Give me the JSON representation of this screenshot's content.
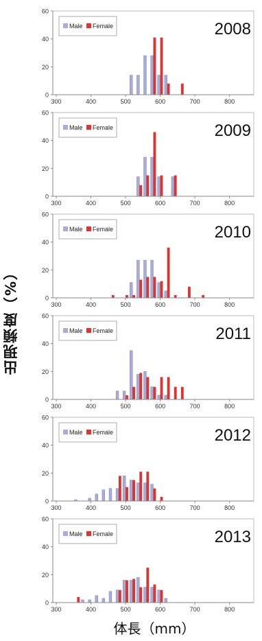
{
  "figure": {
    "ylabel": "出現頻度（%）",
    "xlabel": "体長（mm）"
  },
  "colors": {
    "male": "#a8acd8",
    "male_edge": "#7d82b8",
    "female": "#e0332f",
    "axis": "#888888",
    "frame": "#bdbdbd"
  },
  "chart_data": [
    {
      "type": "bar",
      "title": "2008",
      "xlim": [
        290,
        870
      ],
      "ylim": [
        0,
        60
      ],
      "xticks": [
        300,
        400,
        500,
        600,
        700,
        800
      ],
      "yticks": [
        0,
        20,
        40,
        60
      ],
      "bin_width": 20,
      "legend": "top-left",
      "series": [
        {
          "name": "Male",
          "x": [
            520,
            540,
            560,
            580,
            600,
            620
          ],
          "values": [
            14,
            14,
            28,
            28,
            14,
            14
          ]
        },
        {
          "name": "Female",
          "x": [
            580,
            600,
            620,
            660
          ],
          "values": [
            41,
            41,
            8,
            8
          ]
        }
      ]
    },
    {
      "type": "bar",
      "title": "2009",
      "xlim": [
        290,
        870
      ],
      "ylim": [
        0,
        60
      ],
      "xticks": [
        300,
        400,
        500,
        600,
        700,
        800
      ],
      "yticks": [
        0,
        20,
        40,
        60
      ],
      "bin_width": 20,
      "legend": "top-left",
      "series": [
        {
          "name": "Male",
          "x": [
            540,
            560,
            580,
            600,
            640
          ],
          "values": [
            14,
            28,
            28,
            14,
            14
          ]
        },
        {
          "name": "Female",
          "x": [
            540,
            560,
            580,
            600,
            640
          ],
          "values": [
            8,
            15,
            46,
            15,
            15
          ]
        }
      ]
    },
    {
      "type": "bar",
      "title": "2010",
      "xlim": [
        290,
        870
      ],
      "ylim": [
        0,
        60
      ],
      "xticks": [
        300,
        400,
        500,
        600,
        700,
        800
      ],
      "yticks": [
        0,
        20,
        40,
        60
      ],
      "bin_width": 20,
      "legend": "top-left",
      "series": [
        {
          "name": "Male",
          "x": [
            520,
            540,
            560,
            580,
            600,
            620
          ],
          "values": [
            11,
            27,
            27,
            27,
            11,
            5
          ]
        },
        {
          "name": "Female",
          "x": [
            460,
            500,
            520,
            540,
            560,
            580,
            600,
            620,
            640,
            680,
            720
          ],
          "values": [
            2,
            2,
            2,
            13,
            15,
            15,
            12,
            36,
            2,
            8,
            2
          ]
        }
      ]
    },
    {
      "type": "bar",
      "title": "2011",
      "xlim": [
        290,
        870
      ],
      "ylim": [
        0,
        60
      ],
      "xticks": [
        300,
        400,
        500,
        600,
        700,
        800
      ],
      "yticks": [
        0,
        20,
        40,
        60
      ],
      "bin_width": 20,
      "legend": "top-left",
      "series": [
        {
          "name": "Male",
          "x": [
            480,
            500,
            520,
            540,
            560,
            580,
            600,
            620
          ],
          "values": [
            6,
            6,
            35,
            18,
            20,
            9,
            3,
            3
          ]
        },
        {
          "name": "Female",
          "x": [
            500,
            520,
            540,
            560,
            580,
            600,
            620,
            640,
            660
          ],
          "values": [
            3,
            9,
            19,
            16,
            9,
            16,
            16,
            9,
            9
          ]
        }
      ]
    },
    {
      "type": "bar",
      "title": "2012",
      "xlim": [
        290,
        870
      ],
      "ylim": [
        0,
        60
      ],
      "xticks": [
        300,
        400,
        500,
        600,
        700,
        800
      ],
      "yticks": [
        0,
        20,
        40,
        60
      ],
      "bin_width": 20,
      "legend": "top-left",
      "series": [
        {
          "name": "Male",
          "x": [
            360,
            400,
            420,
            440,
            460,
            480,
            500,
            520,
            540,
            560,
            580
          ],
          "values": [
            1,
            2,
            5,
            8,
            9,
            9,
            18,
            15,
            13,
            13,
            12
          ]
        },
        {
          "name": "Female",
          "x": [
            480,
            500,
            520,
            540,
            560,
            580,
            600
          ],
          "values": [
            18,
            10,
            15,
            21,
            21,
            9,
            3
          ]
        }
      ]
    },
    {
      "type": "bar",
      "title": "2013",
      "xlim": [
        290,
        870
      ],
      "ylim": [
        0,
        60
      ],
      "xticks": [
        300,
        400,
        500,
        600,
        700,
        800
      ],
      "yticks": [
        0,
        20,
        40,
        60
      ],
      "bin_width": 20,
      "legend": "top-left",
      "series": [
        {
          "name": "Male",
          "x": [
            380,
            400,
            420,
            440,
            460,
            480,
            500,
            520,
            540,
            560,
            580,
            600,
            620
          ],
          "values": [
            2,
            2,
            5,
            3,
            8,
            9,
            16,
            16,
            18,
            11,
            11,
            9,
            3
          ]
        },
        {
          "name": "Female",
          "x": [
            360,
            480,
            500,
            520,
            540,
            560,
            580,
            600
          ],
          "values": [
            4,
            9,
            16,
            17,
            11,
            25,
            13,
            9
          ]
        }
      ]
    }
  ]
}
